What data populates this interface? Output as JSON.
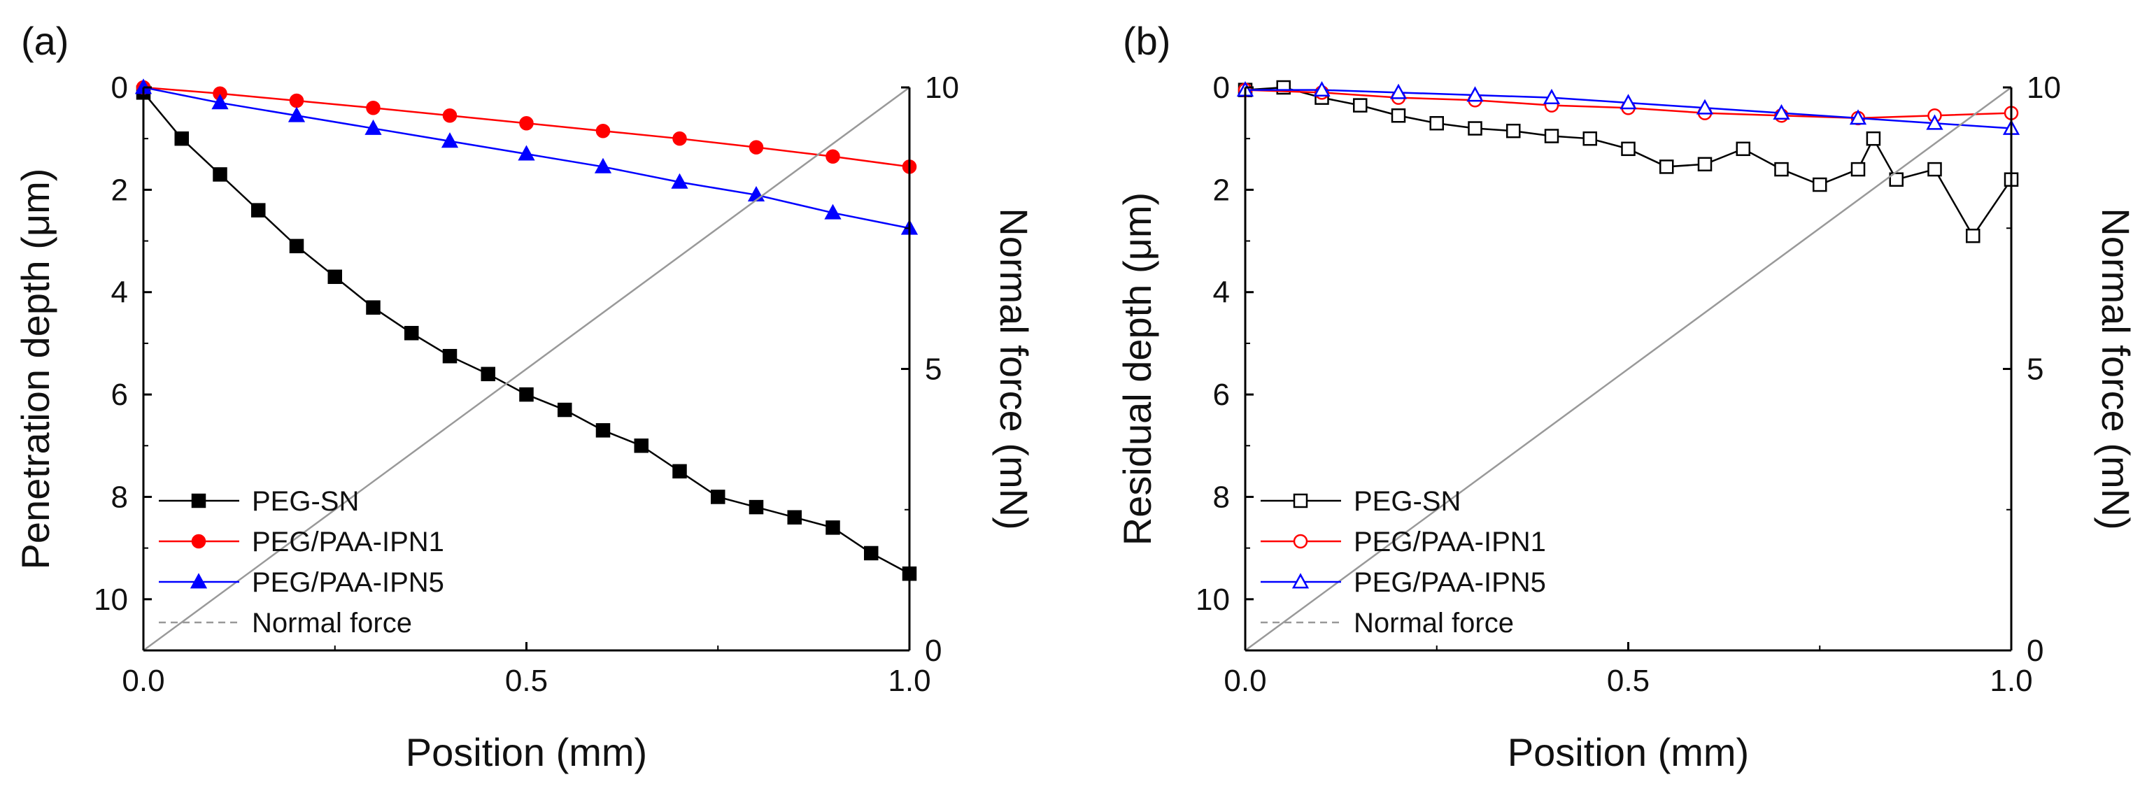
{
  "chart_data": [
    {
      "panel_label": "(a)",
      "type": "line",
      "xlabel": "Position (mm)",
      "ylabel": "Penetration depth (μm)",
      "y2label": "Normal force (mN)",
      "xlim": [
        0.0,
        1.0
      ],
      "ylim": [
        0,
        11
      ],
      "y_inverted": true,
      "y2lim": [
        0,
        10
      ],
      "xticks": [
        "0.0",
        "0.5",
        "1.0"
      ],
      "yticks": [
        "0",
        "2",
        "4",
        "6",
        "8",
        "10"
      ],
      "y2ticks": [
        "0",
        "5",
        "10"
      ],
      "legend": {
        "position": "bottom-left",
        "entries": [
          "PEG-SN",
          "PEG/PAA-IPN1",
          "PEG/PAA-IPN5",
          "Normal force"
        ]
      },
      "series": [
        {
          "name": "PEG-SN",
          "color": "#000000",
          "marker": "square",
          "filled": true,
          "x": [
            0,
            0.05,
            0.1,
            0.15,
            0.2,
            0.25,
            0.3,
            0.35,
            0.4,
            0.45,
            0.5,
            0.55,
            0.6,
            0.65,
            0.7,
            0.75,
            0.8,
            0.85,
            0.9,
            0.95,
            1.0
          ],
          "y": [
            0.1,
            1.0,
            1.7,
            2.4,
            3.1,
            3.7,
            4.3,
            4.8,
            5.25,
            5.6,
            6.0,
            6.3,
            6.7,
            7.0,
            7.5,
            8.0,
            8.2,
            8.4,
            8.6,
            9.1,
            9.5
          ]
        },
        {
          "name": "PEG/PAA-IPN1",
          "color": "#ff0000",
          "marker": "circle",
          "filled": true,
          "x": [
            0,
            0.1,
            0.2,
            0.3,
            0.4,
            0.5,
            0.6,
            0.7,
            0.8,
            0.9,
            1.0
          ],
          "y": [
            0.0,
            0.12,
            0.26,
            0.4,
            0.55,
            0.7,
            0.85,
            1.0,
            1.17,
            1.35,
            1.55
          ]
        },
        {
          "name": "PEG/PAA-IPN5",
          "color": "#0000ff",
          "marker": "triangle",
          "filled": true,
          "x": [
            0,
            0.1,
            0.2,
            0.3,
            0.4,
            0.5,
            0.6,
            0.7,
            0.8,
            0.9,
            1.0
          ],
          "y": [
            0.0,
            0.3,
            0.55,
            0.8,
            1.05,
            1.3,
            1.55,
            1.85,
            2.1,
            2.45,
            2.75
          ]
        },
        {
          "name": "Normal force",
          "color": "#999999",
          "marker": "none",
          "axis": "y2",
          "dashed_in_legend": true,
          "x": [
            0.0,
            1.0
          ],
          "y": [
            0,
            10
          ]
        }
      ]
    },
    {
      "panel_label": "(b)",
      "type": "line",
      "xlabel": "Position (mm)",
      "ylabel": "Residual depth (μm)",
      "y2label": "Normal force (mN)",
      "xlim": [
        0.0,
        1.0
      ],
      "ylim": [
        0,
        11
      ],
      "y_inverted": true,
      "y2lim": [
        0,
        10
      ],
      "xticks": [
        "0.0",
        "0.5",
        "1.0"
      ],
      "yticks": [
        "0",
        "2",
        "4",
        "6",
        "8",
        "10"
      ],
      "y2ticks": [
        "0",
        "5",
        "10"
      ],
      "legend": {
        "position": "bottom-left",
        "entries": [
          "PEG-SN",
          "PEG/PAA-IPN1",
          "PEG/PAA-IPN5",
          "Normal force"
        ]
      },
      "series": [
        {
          "name": "PEG-SN",
          "color": "#000000",
          "marker": "square",
          "filled": false,
          "x": [
            0,
            0.05,
            0.1,
            0.15,
            0.2,
            0.25,
            0.3,
            0.35,
            0.4,
            0.45,
            0.5,
            0.55,
            0.6,
            0.65,
            0.7,
            0.75,
            0.8,
            0.82,
            0.85,
            0.9,
            0.95,
            1.0
          ],
          "y": [
            0.05,
            0.0,
            0.2,
            0.35,
            0.55,
            0.7,
            0.8,
            0.85,
            0.95,
            1.0,
            1.2,
            1.55,
            1.5,
            1.2,
            1.6,
            1.9,
            1.6,
            1.0,
            1.8,
            1.6,
            2.9,
            1.8
          ]
        },
        {
          "name": "PEG/PAA-IPN1",
          "color": "#ff0000",
          "marker": "circle",
          "filled": false,
          "x": [
            0,
            0.1,
            0.2,
            0.3,
            0.4,
            0.5,
            0.6,
            0.7,
            0.8,
            0.9,
            1.0
          ],
          "y": [
            0.05,
            0.1,
            0.2,
            0.25,
            0.35,
            0.4,
            0.5,
            0.55,
            0.6,
            0.55,
            0.5
          ]
        },
        {
          "name": "PEG/PAA-IPN5",
          "color": "#0000ff",
          "marker": "triangle",
          "filled": false,
          "x": [
            0,
            0.1,
            0.2,
            0.3,
            0.4,
            0.5,
            0.6,
            0.7,
            0.8,
            0.9,
            1.0
          ],
          "y": [
            0.05,
            0.05,
            0.1,
            0.15,
            0.2,
            0.3,
            0.4,
            0.5,
            0.6,
            0.7,
            0.8
          ]
        },
        {
          "name": "Normal force",
          "color": "#999999",
          "marker": "none",
          "axis": "y2",
          "dashed_in_legend": true,
          "x": [
            0.0,
            1.0
          ],
          "y": [
            0,
            10
          ]
        }
      ]
    }
  ]
}
